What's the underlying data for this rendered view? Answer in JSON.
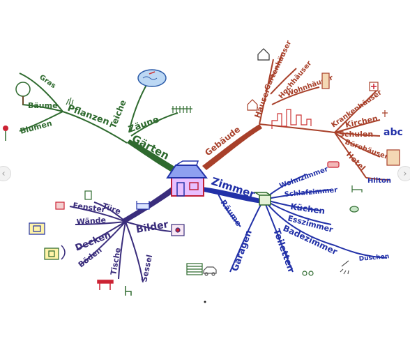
{
  "mindmap": {
    "center": {
      "label": ""
    },
    "colors": {
      "garten": "#2e6a2e",
      "gebaeude": "#a8402a",
      "zimmer": "#2231a8",
      "raeume": "#3a2d7c",
      "house_outline": "#2233aa",
      "house_fill": "#c0203a"
    },
    "branches": {
      "gaerten": {
        "label": "Gärten",
        "children": {
          "pflanzen": "Pflanzen",
          "teiche": "Teiche",
          "zaeune": "Zäune",
          "gras": "Gras",
          "baeume": "Bäume",
          "blumen": "Blumen"
        }
      },
      "gebaeude": {
        "label": "Gebäude",
        "children": {
          "haeuser": "Häuser",
          "garten_haeuser": "Gartenhäuser",
          "hochhaeuser": "Hochhäuser",
          "wohnhaeuser": "Wohnhäuser",
          "krankenhaeuser": "Krankenhäuser",
          "kirchen": "Kirchen",
          "schulen": "Schulen",
          "buerohaeuser": "Bürohäuser",
          "hotel": "Hotel",
          "hilton": "Hilton",
          "abc": "abc"
        }
      },
      "zimmer": {
        "label": "Zimmer",
        "children": {
          "wohnzimmer": "Wohnzimmer",
          "schlafzimmer": "Schlafzimmer",
          "kuechen": "Küchen",
          "esszimmer": "Esszimmer",
          "badezimmer": "Badezimmer",
          "duschen": "Duschen",
          "toiletten": "Toiletten",
          "garagen": "Garagen",
          "raeume": "Räume"
        }
      },
      "bilder": {
        "label": "Bilder",
        "children": {
          "tuere": "Türe",
          "fenster": "Fenster",
          "waende": "Wände",
          "decken": "Decken",
          "boeden": "Böden",
          "tische": "Tische",
          "sessel": "Sessel"
        }
      }
    }
  }
}
